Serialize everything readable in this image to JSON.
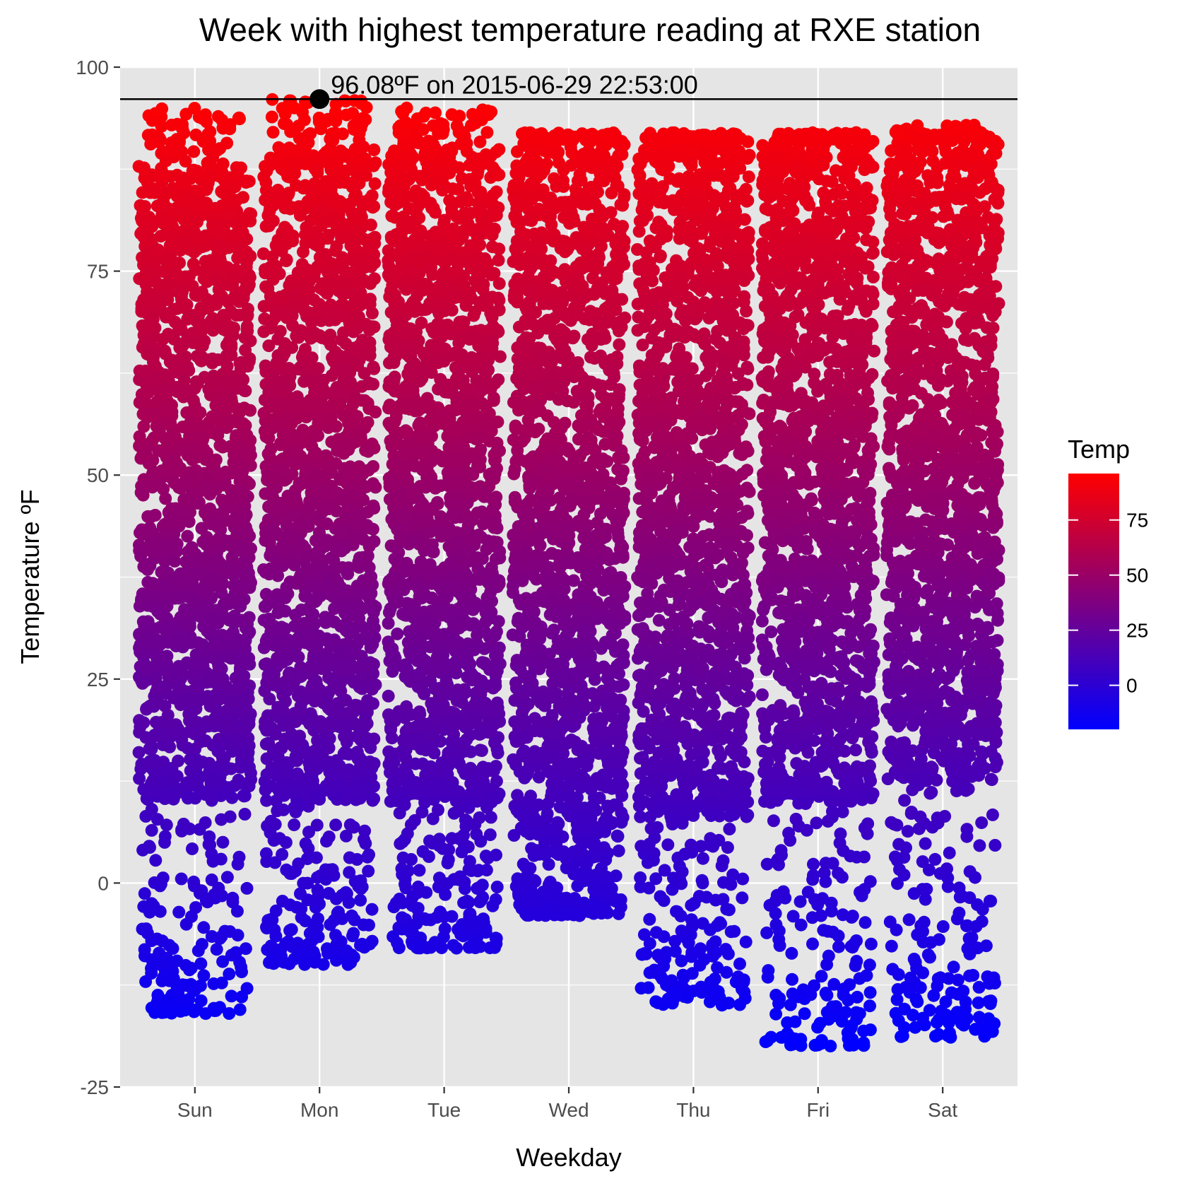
{
  "chart_data": {
    "type": "scatter",
    "title": "Week with highest temperature reading at RXE station",
    "xlabel": "Weekday",
    "ylabel": "Temperature ºF",
    "categories": [
      "Sun",
      "Mon",
      "Tue",
      "Wed",
      "Thu",
      "Fri",
      "Sat"
    ],
    "ylim": [
      -25,
      100
    ],
    "yticks": [
      -25,
      0,
      25,
      50,
      75,
      100
    ],
    "grid": true,
    "jitter": true,
    "distributions": [
      {
        "category": "Sun",
        "min": -16,
        "max": 95,
        "bulk_low": 10,
        "bulk_high": 88
      },
      {
        "category": "Mon",
        "min": -10,
        "max": 96.08,
        "bulk_low": 10,
        "bulk_high": 90
      },
      {
        "category": "Tue",
        "min": -8,
        "max": 95,
        "bulk_low": 10,
        "bulk_high": 90
      },
      {
        "category": "Wed",
        "min": -4,
        "max": 92,
        "bulk_low": 5,
        "bulk_high": 91
      },
      {
        "category": "Thu",
        "min": -15,
        "max": 92,
        "bulk_low": 8,
        "bulk_high": 91
      },
      {
        "category": "Fri",
        "min": -20,
        "max": 92,
        "bulk_low": 10,
        "bulk_high": 91
      },
      {
        "category": "Sat",
        "min": -19,
        "max": 93,
        "bulk_low": 12,
        "bulk_high": 91
      }
    ],
    "highlight": {
      "category": "Mon",
      "value": 96.08,
      "label": "96.08ºF on 2015-06-29 22:53:00",
      "hline": 96.08
    },
    "legend": {
      "title": "Temp",
      "position": "right",
      "labels": [
        "0",
        "25",
        "50",
        "75"
      ],
      "breaks": [
        0,
        25,
        50,
        75
      ],
      "range": [
        -20,
        96.08
      ],
      "low_color": "#0000FF",
      "high_color": "#FF0000"
    },
    "colors": {
      "panel_background": "#E5E5E5",
      "grid": "#FFFFFF",
      "highlight_point": "#000000"
    }
  }
}
